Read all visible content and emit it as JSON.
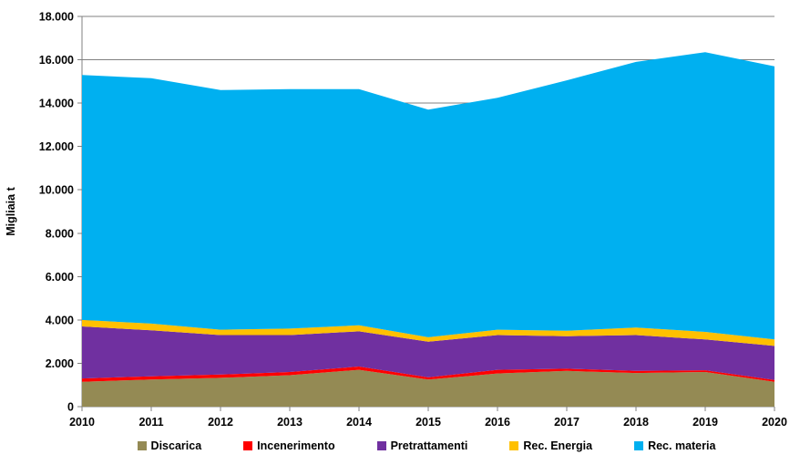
{
  "chart_data": {
    "type": "area",
    "stacked": true,
    "title": "",
    "xlabel": "",
    "ylabel": "Migliaia t",
    "ylim": [
      0,
      18000
    ],
    "ytick_step": 2000,
    "ytick_labels": [
      "0",
      "2.000",
      "4.000",
      "6.000",
      "8.000",
      "10.000",
      "12.000",
      "14.000",
      "16.000",
      "18.000"
    ],
    "x": [
      2010,
      2011,
      2012,
      2013,
      2014,
      2015,
      2016,
      2017,
      2018,
      2019,
      2020
    ],
    "x_labels": [
      "2010",
      "2011",
      "2012",
      "2013",
      "2014",
      "2015",
      "2016",
      "2017",
      "2018",
      "2019",
      "2020"
    ],
    "grid": true,
    "legend_position": "bottom",
    "series": [
      {
        "name": "Discarica",
        "color": "#948A54",
        "values": [
          1150,
          1250,
          1330,
          1450,
          1700,
          1250,
          1530,
          1650,
          1550,
          1600,
          1150
        ]
      },
      {
        "name": "Incenerimento",
        "color": "#FF0000",
        "values": [
          150,
          150,
          150,
          150,
          150,
          100,
          170,
          100,
          100,
          80,
          80
        ]
      },
      {
        "name": "Pretrattamenti",
        "color": "#7030A0",
        "values": [
          2400,
          2120,
          1820,
          1700,
          1625,
          1650,
          1600,
          1500,
          1650,
          1420,
          1570
        ]
      },
      {
        "name": "Rec. Energia",
        "color": "#FFC000",
        "values": [
          300,
          310,
          250,
          300,
          275,
          200,
          250,
          250,
          350,
          350,
          300
        ]
      },
      {
        "name": "Rec. materia",
        "color": "#00B0F0",
        "values": [
          11300,
          11320,
          11050,
          11050,
          10900,
          10500,
          10700,
          11550,
          12250,
          12900,
          12600
        ]
      }
    ],
    "stacked_totals": [
      15300,
      15150,
      14600,
      14650,
      14650,
      13700,
      14250,
      15050,
      15900,
      16350,
      15700
    ],
    "colors": {
      "gridline": "#808080",
      "axis": "#808080",
      "text": "#000000",
      "background": "#FFFFFF"
    }
  }
}
